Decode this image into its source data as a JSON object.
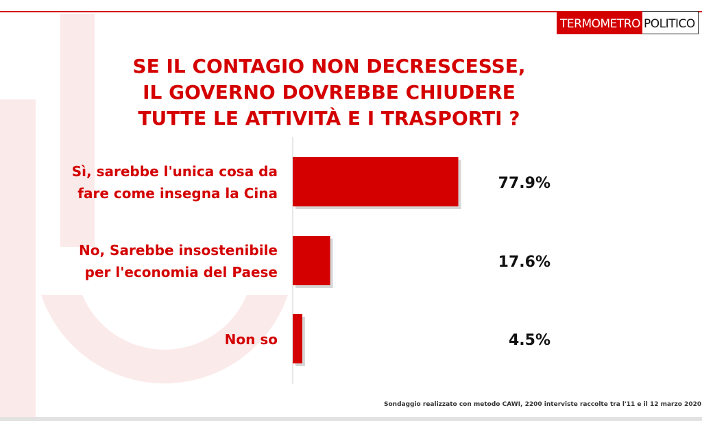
{
  "logo": {
    "part1": "TERMOMETRO",
    "part2": "POLITICO"
  },
  "title_lines": [
    "SE IL CONTAGIO NON DECRESCESSE,",
    "IL GOVERNO DOVREBBE CHIUDERE",
    "TUTTE LE ATTIVITÀ E I TRASPORTI ?"
  ],
  "footnote": "Sondaggio realizzato con metodo CAWI, 2200 interviste raccolte tra l'11 e il 12 marzo 2020.",
  "colors": {
    "accent": "#d40000",
    "text": "#111111",
    "bar_shadow": "#bbbbbb",
    "watermark": "#fbeaea"
  },
  "chart_data": {
    "type": "bar",
    "orientation": "horizontal",
    "categories": [
      [
        "Sì, sarebbe l'unica cosa da",
        "fare come insegna la Cina"
      ],
      [
        "No, Sarebbe insostenibile",
        "per l'economia del Paese"
      ],
      [
        "Non so"
      ]
    ],
    "values": [
      77.9,
      17.6,
      4.5
    ],
    "value_labels": [
      "77.9%",
      "17.6%",
      "4.5%"
    ],
    "xlim": [
      0,
      100
    ],
    "grid": false,
    "legend": "none"
  }
}
